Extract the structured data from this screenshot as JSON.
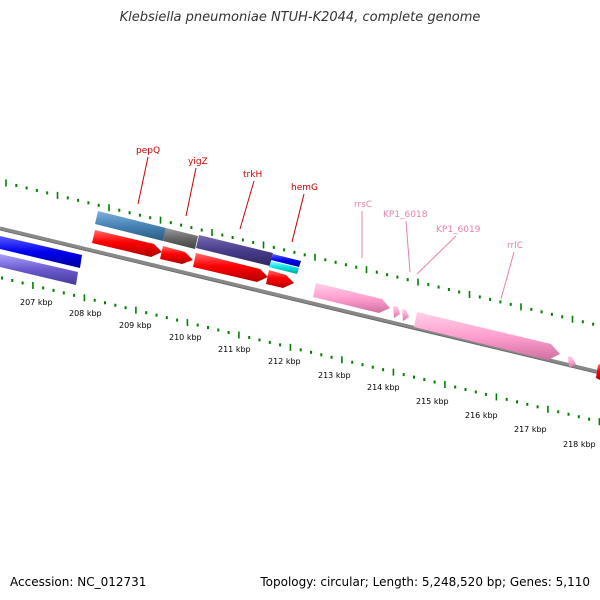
{
  "header": {
    "title": "Klebsiella pneumoniae NTUH-K2044, complete genome"
  },
  "footer": {
    "accession": "Accession: NC_012731",
    "topology": "Topology: circular; Length: 5,248,520 bp; Genes: 5,110"
  },
  "colors": {
    "backbone": "#888888",
    "cds": "#ff0000",
    "rna": "#ffa0d0",
    "gc_ticks": "#008000",
    "gene_label": "#cc0000",
    "rna_label": "#e87fb0"
  },
  "map": {
    "tick_labels": [
      "207 kbp",
      "208 kbp",
      "209 kbp",
      "210 kbp",
      "211 kbp",
      "212 kbp",
      "213 kbp",
      "214 kbp",
      "215 kbp",
      "216 kbp",
      "217 kbp",
      "218 kbp"
    ],
    "gene_labels": [
      "pepQ",
      "yigZ",
      "trkH",
      "hemG"
    ],
    "rna_labels": [
      "rrsC",
      "KP1_6018",
      "KP1_6019",
      "rrlC"
    ]
  }
}
